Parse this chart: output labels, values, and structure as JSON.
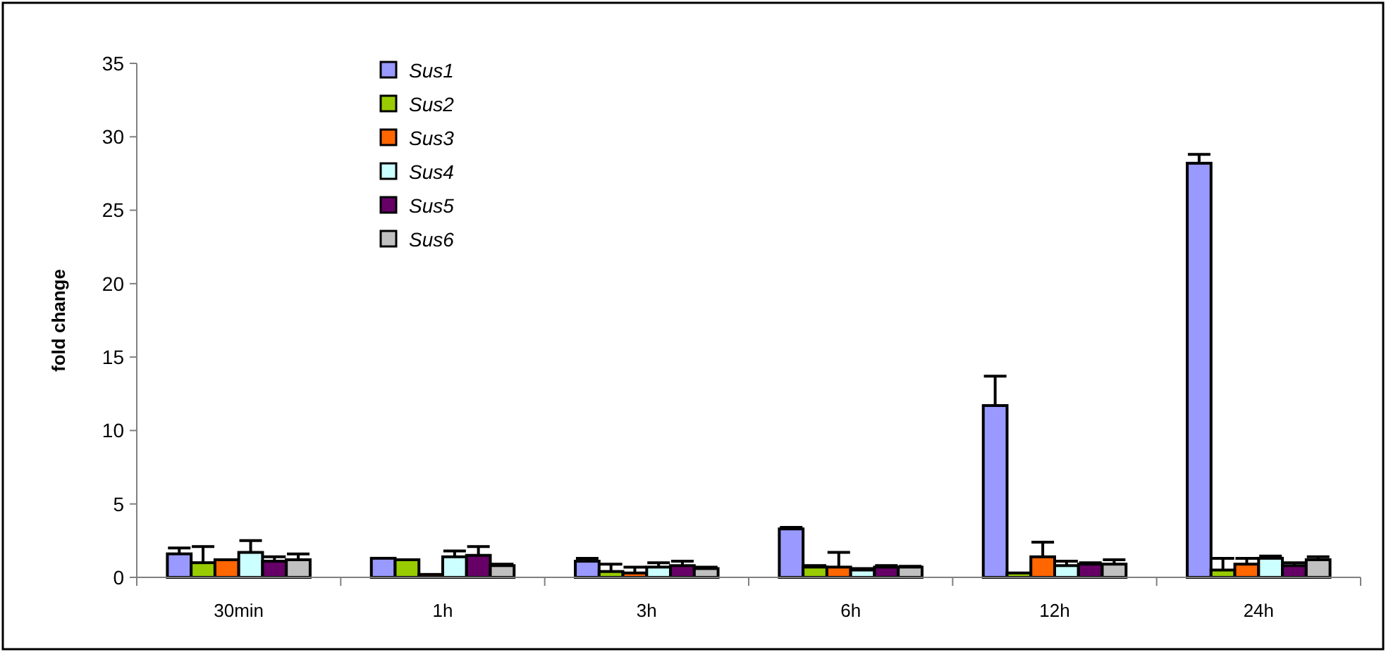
{
  "chart_data": {
    "type": "bar",
    "ylabel": "fold change",
    "categories": [
      "30min",
      "1h",
      "3h",
      "6h",
      "12h",
      "24h"
    ],
    "ylim": [
      0,
      35
    ],
    "yticks": [
      0,
      5,
      10,
      15,
      20,
      25,
      30,
      35
    ],
    "grid": false,
    "legend": "top left",
    "series": [
      {
        "name": "Sus1",
        "color": "#9999ff",
        "values": [
          1.6,
          1.3,
          1.1,
          3.3,
          11.7,
          28.2
        ],
        "errors": [
          [
            1.6,
            2.0
          ],
          null,
          [
            1.1,
            1.3
          ],
          [
            3.3,
            3.4
          ],
          [
            11.7,
            13.7
          ],
          [
            28.2,
            28.8
          ]
        ]
      },
      {
        "name": "Sus2",
        "color": "#99cc00",
        "values": [
          1.0,
          1.2,
          0.4,
          0.7,
          0.3,
          0.5
        ],
        "errors": [
          [
            1.0,
            2.1
          ],
          null,
          [
            0.4,
            0.9
          ],
          [
            0.7,
            0.8
          ],
          null,
          [
            0.5,
            1.3
          ]
        ]
      },
      {
        "name": "Sus3",
        "color": "#ff6600",
        "values": [
          1.2,
          0.2,
          0.3,
          0.7,
          1.4,
          0.9
        ],
        "errors": [
          null,
          null,
          [
            0.3,
            0.7
          ],
          [
            0.7,
            1.7
          ],
          [
            1.4,
            2.4
          ],
          [
            0.9,
            1.3
          ]
        ]
      },
      {
        "name": "Sus4",
        "color": "#ccffff",
        "values": [
          1.7,
          1.4,
          0.7,
          0.5,
          0.8,
          1.3
        ],
        "errors": [
          [
            1.7,
            2.5
          ],
          [
            1.4,
            1.8
          ],
          [
            0.7,
            1.0
          ],
          [
            0.5,
            0.6
          ],
          [
            0.8,
            1.1
          ],
          [
            1.3,
            1.45
          ]
        ]
      },
      {
        "name": "Sus5",
        "color": "#660066",
        "values": [
          1.1,
          1.5,
          0.8,
          0.7,
          0.9,
          0.8
        ],
        "errors": [
          [
            1.1,
            1.4
          ],
          [
            1.5,
            2.1
          ],
          [
            0.8,
            1.1
          ],
          [
            0.7,
            0.8
          ],
          [
            0.9,
            1.0
          ],
          [
            0.8,
            1.0
          ]
        ]
      },
      {
        "name": "Sus6",
        "color": "#c0c0c0",
        "values": [
          1.2,
          0.8,
          0.6,
          0.7,
          0.9,
          1.2
        ],
        "errors": [
          [
            1.2,
            1.6
          ],
          [
            0.8,
            0.9
          ],
          [
            0.6,
            0.7
          ],
          [
            0.7,
            0.75
          ],
          [
            0.9,
            1.2
          ],
          [
            1.2,
            1.4
          ]
        ]
      }
    ]
  }
}
